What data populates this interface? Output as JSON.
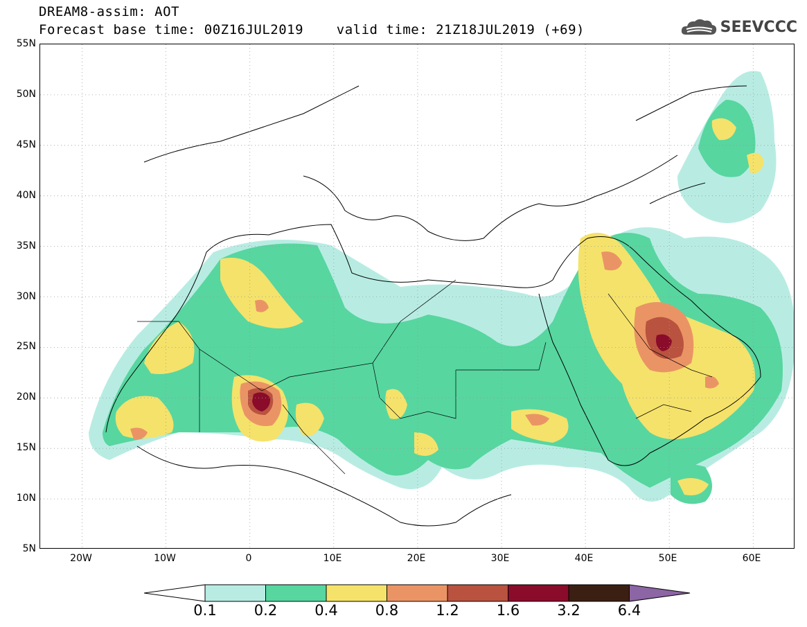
{
  "header": {
    "line1": "DREAM8-assim: AOT",
    "line2": "Forecast base time: 00Z16JUL2019    valid time: 21Z18JUL2019 (+69)",
    "logo_text": "SEEVCCC",
    "logo_icon": "cloud-icon"
  },
  "map": {
    "lat_ticks": [
      "55N",
      "50N",
      "45N",
      "40N",
      "35N",
      "30N",
      "25N",
      "20N",
      "15N",
      "10N",
      "5N"
    ],
    "lon_ticks": [
      "20W",
      "10W",
      "0",
      "10E",
      "20E",
      "30E",
      "40E",
      "50E",
      "60E"
    ],
    "extent": {
      "lon_min": -25,
      "lon_max": 65,
      "lat_min": 5,
      "lat_max": 55
    }
  },
  "legend": {
    "labels": [
      "0.1",
      "0.2",
      "0.4",
      "0.8",
      "1.2",
      "1.6",
      "3.2",
      "6.4"
    ],
    "colors": [
      "#ffffff",
      "#b8ece3",
      "#57d6a0",
      "#f5e26a",
      "#ea9466",
      "#b9523f",
      "#8a0b2a",
      "#3b1f12",
      "#8c65a4"
    ]
  }
}
